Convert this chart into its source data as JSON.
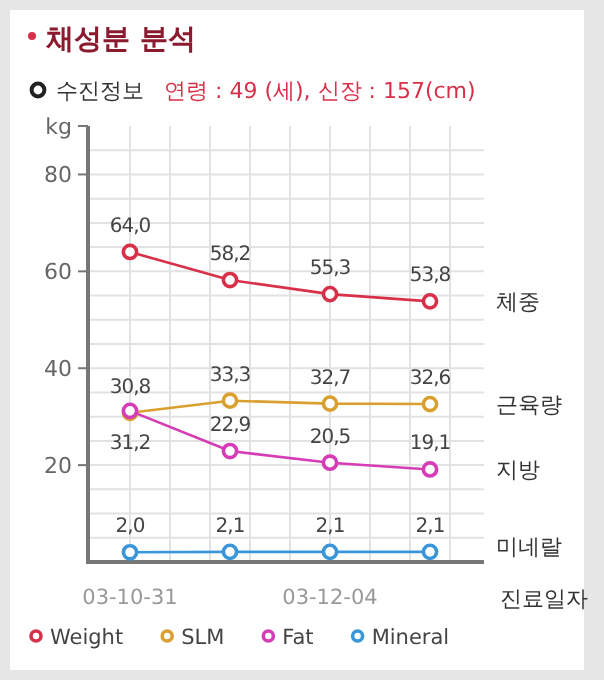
{
  "chart_data": {
    "type": "line",
    "title": "채성분 분석",
    "subtitle": "수진정보",
    "xlabel": "진료일자",
    "ylabel": "kg",
    "categories": [
      "03-10-31",
      null,
      "03-12-04",
      null
    ],
    "series": [
      {
        "name": "Weight",
        "color": "#d9304a",
        "values": [
          64.0,
          58.2,
          55.3,
          53.8
        ],
        "value_labels": [
          "64,0",
          "58,2",
          "55,3",
          "53,8"
        ]
      },
      {
        "name": "SLM",
        "color": "#d9a030",
        "values": [
          30.8,
          33.3,
          32.7,
          32.6
        ],
        "value_labels": [
          "30,8",
          "33,3",
          "32,7",
          "32,6"
        ]
      },
      {
        "name": "Fat",
        "color": "#d63cb5",
        "values": [
          31.2,
          22.9,
          20.5,
          19.1
        ],
        "value_labels": [
          "31,2",
          "22,9",
          "20,5",
          "19,1"
        ]
      },
      {
        "name": "Mineral",
        "color": "#3a96d8",
        "values": [
          2.0,
          2.1,
          2.1,
          2.1
        ],
        "value_labels": [
          "2,0",
          "2,1",
          "2,1",
          "2,1"
        ]
      }
    ],
    "ylim": [
      0,
      90
    ],
    "yticks": [
      20,
      40,
      60,
      80
    ],
    "grid": true,
    "legend": "bottom",
    "marker": "circle",
    "annotations": [
      "연령 : 49 (세),  신장 : 157(cm)",
      "체중",
      "근육량",
      "지방",
      "미네랄"
    ]
  }
}
